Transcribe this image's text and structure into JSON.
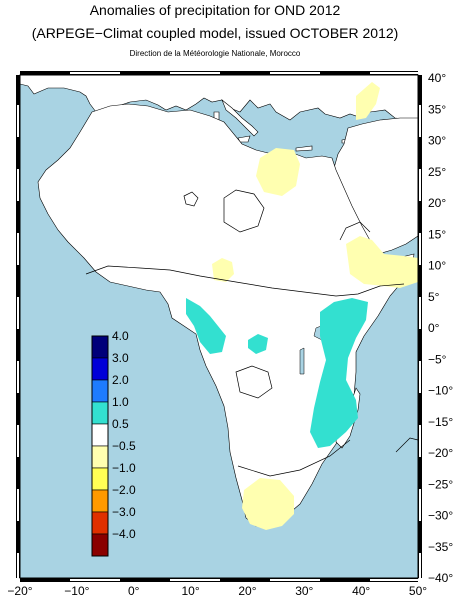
{
  "header": {
    "title": "Anomalies of precipitation for OND 2012",
    "subtitle": "(ARPEGE−Climat coupled model, issued OCTOBER 2012)",
    "credit": "Direction de la Météorologie Nationale, Morocco"
  },
  "axes": {
    "x_ticks": [
      "−20°",
      "−10°",
      "0°",
      "10°",
      "20°",
      "30°",
      "40°",
      "50°"
    ],
    "y_ticks": [
      "40°",
      "35°",
      "30°",
      "25°",
      "20°",
      "15°",
      "10°",
      "5°",
      "0°",
      "−5°",
      "−10°",
      "−15°",
      "−20°",
      "−25°",
      "−30°",
      "−35°",
      "−40°"
    ]
  },
  "legend": {
    "labels": [
      "4.0",
      "3.0",
      "2.0",
      "1.0",
      "0.5",
      "−0.5",
      "−1.0",
      "−2.0",
      "−3.0",
      "−4.0"
    ],
    "colors": [
      "#00007a",
      "#0000d8",
      "#1e7cff",
      "#33e0d0",
      "#ffffff",
      "#ffffb0",
      "#ffff55",
      "#ff9a00",
      "#e03000",
      "#8a0000"
    ]
  },
  "colors": {
    "ocean": "#a9d3e3",
    "land": "#ffffff",
    "positive_anomaly": "#33e0d0",
    "negative_anomaly": "#ffffb0"
  }
}
